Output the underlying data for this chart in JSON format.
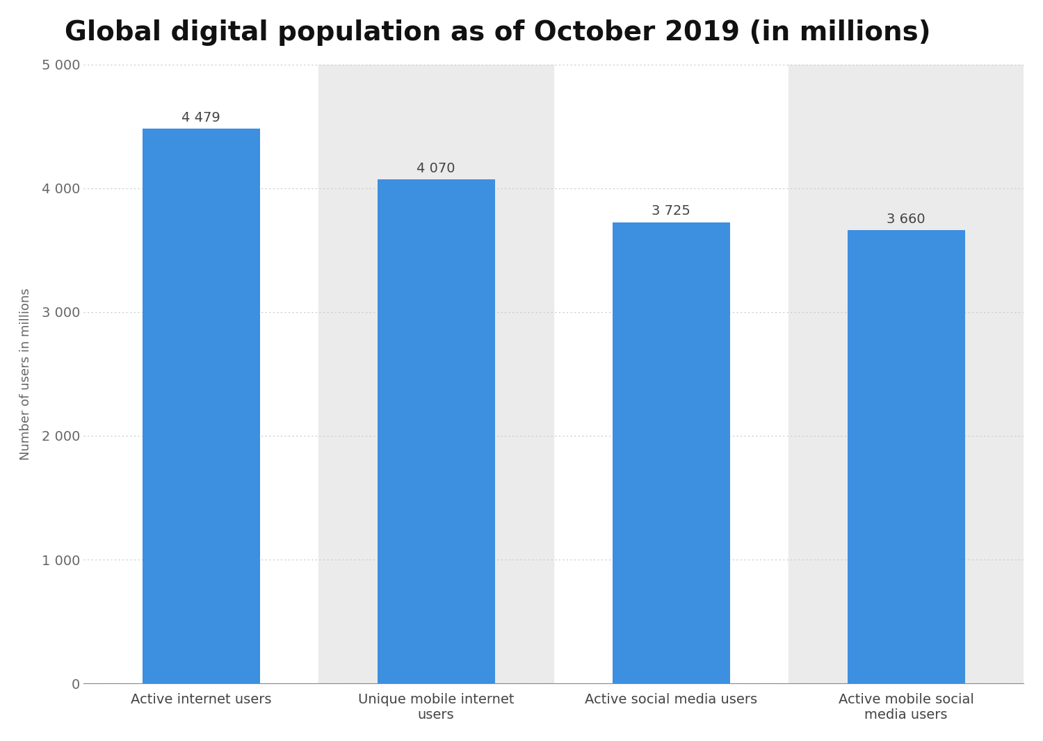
{
  "title": "Global digital population as of October 2019 (in millions)",
  "categories": [
    "Active internet users",
    "Unique mobile internet\nusers",
    "Active social media users",
    "Active mobile social\nmedia users"
  ],
  "values": [
    4479,
    4070,
    3725,
    3660
  ],
  "bar_color": "#3d8fe0",
  "ylabel": "Number of users in millions",
  "ylim": [
    0,
    5000
  ],
  "yticks": [
    0,
    1000,
    2000,
    3000,
    4000,
    5000
  ],
  "ytick_labels": [
    "0",
    "1 000",
    "2 000",
    "3 000",
    "4 000",
    "5 000"
  ],
  "value_labels": [
    "4 479",
    "4 070",
    "3 725",
    "3 660"
  ],
  "title_fontsize": 28,
  "label_fontsize": 13,
  "value_fontsize": 14,
  "tick_fontsize": 14,
  "bar_width": 0.5,
  "background_color": "#ffffff",
  "band_color": "#ebebeb",
  "grid_color": "#c8c8c8",
  "grid_style": "dotted"
}
